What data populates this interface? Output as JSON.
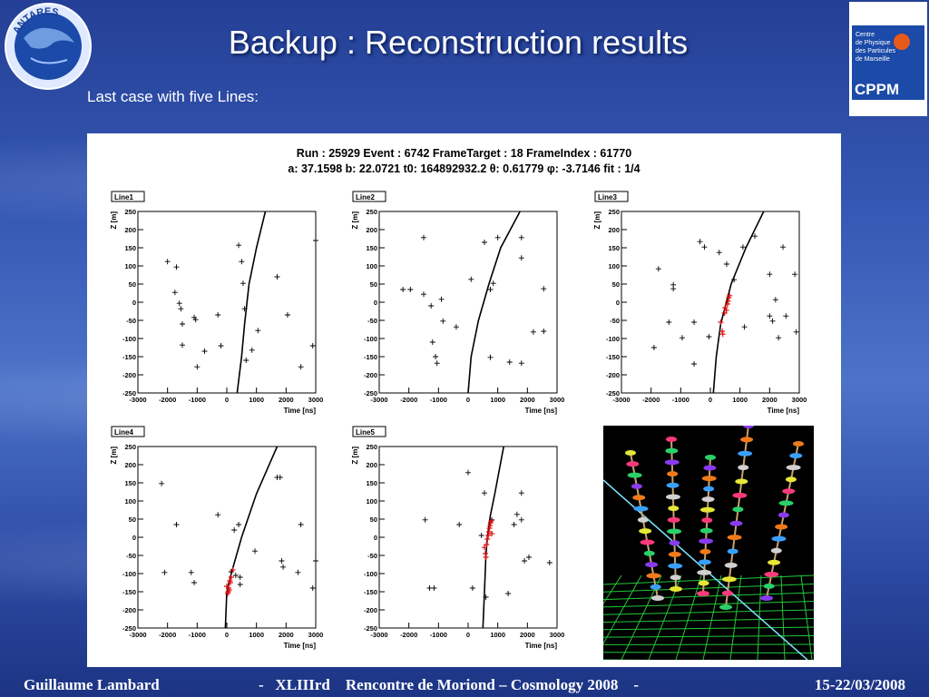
{
  "slide": {
    "title": "Backup : Reconstruction results",
    "subtitle": "Last case with five Lines:",
    "logo_left_text": "ANTARES",
    "logo_right": {
      "line1": "Centre",
      "line2": "de Physique",
      "line3": "des Particules",
      "line4": "de Marseille",
      "brand": "CPPM"
    }
  },
  "figure": {
    "title_line1": "Run : 25929 Event : 6742 FrameTarget : 18 FrameIndex : 61770",
    "title_line2": "a: 37.1598 b: 22.0721 t0: 164892932.2 θ: 0.61779 φ: -3.7146  fit : 1/4"
  },
  "footer": {
    "left": "Guillaume Lambard",
    "center": "-   XLIIIrd    Rencontre de Moriond – Cosmology 2008    -",
    "right": "15-22/03/2008"
  },
  "colors": {
    "hit": "#000000",
    "fit_hit": "#e01010",
    "curve": "#000000"
  },
  "chart_data": [
    {
      "type": "scatter",
      "title": "Line1",
      "xlabel": "Time [ns]",
      "ylabel": "Z [m]",
      "xlim": [
        -3000,
        3000
      ],
      "ylim": [
        -250,
        250
      ],
      "xticks": [
        -3000,
        -2000,
        -1000,
        0,
        1000,
        2000,
        3000
      ],
      "yticks": [
        -250,
        -200,
        -150,
        -100,
        -50,
        0,
        50,
        100,
        150,
        200,
        250
      ],
      "curve": [
        [
          350,
          -250
        ],
        [
          500,
          -150
        ],
        [
          600,
          -60
        ],
        [
          750,
          50
        ],
        [
          1000,
          150
        ],
        [
          1300,
          250
        ]
      ],
      "hits": [
        [
          -2000,
          112
        ],
        [
          -1700,
          97
        ],
        [
          -1750,
          27
        ],
        [
          -1600,
          -3
        ],
        [
          -1550,
          -18
        ],
        [
          -1500,
          -60
        ],
        [
          -1500,
          -118
        ],
        [
          -1050,
          -48
        ],
        [
          -1000,
          -178
        ],
        [
          -750,
          -135
        ],
        [
          -1100,
          -42
        ],
        [
          -300,
          -35
        ],
        [
          -200,
          -120
        ],
        [
          400,
          157
        ],
        [
          500,
          112
        ],
        [
          550,
          52
        ],
        [
          600,
          -18
        ],
        [
          650,
          -160
        ],
        [
          850,
          -132
        ],
        [
          1050,
          -78
        ],
        [
          1700,
          70
        ],
        [
          2050,
          -35
        ],
        [
          2500,
          -178
        ],
        [
          2900,
          -120
        ],
        [
          3000,
          170
        ]
      ],
      "fit_hits": []
    },
    {
      "type": "scatter",
      "title": "Line2",
      "xlabel": "Time [ns]",
      "ylabel": "Z [m]",
      "xlim": [
        -3000,
        3000
      ],
      "ylim": [
        -250,
        250
      ],
      "xticks": [
        -3000,
        -2000,
        -1000,
        0,
        1000,
        2000,
        3000
      ],
      "yticks": [
        -250,
        -200,
        -150,
        -100,
        -50,
        0,
        50,
        100,
        150,
        200,
        250
      ],
      "curve": [
        [
          0,
          -250
        ],
        [
          100,
          -150
        ],
        [
          350,
          -50
        ],
        [
          700,
          50
        ],
        [
          1100,
          150
        ],
        [
          1750,
          250
        ]
      ],
      "hits": [
        [
          -2200,
          35
        ],
        [
          -1950,
          35
        ],
        [
          -1500,
          178
        ],
        [
          -1500,
          22
        ],
        [
          -1250,
          -10
        ],
        [
          -1200,
          -110
        ],
        [
          -1100,
          -150
        ],
        [
          -1050,
          -168
        ],
        [
          -900,
          8
        ],
        [
          -850,
          -52
        ],
        [
          -400,
          -68
        ],
        [
          100,
          63
        ],
        [
          550,
          165
        ],
        [
          750,
          35
        ],
        [
          850,
          52
        ],
        [
          750,
          -152
        ],
        [
          1000,
          178
        ],
        [
          1400,
          -165
        ],
        [
          1800,
          178
        ],
        [
          1800,
          122
        ],
        [
          1800,
          -168
        ],
        [
          2200,
          -82
        ],
        [
          2550,
          37
        ],
        [
          2550,
          -80
        ]
      ],
      "fit_hits": []
    },
    {
      "type": "scatter",
      "title": "Line3",
      "xlabel": "Time [ns]",
      "ylabel": "Z [m]",
      "xlim": [
        -3000,
        3000
      ],
      "ylim": [
        -250,
        250
      ],
      "xticks": [
        -3000,
        -2000,
        -1000,
        0,
        1000,
        2000,
        3000
      ],
      "yticks": [
        -250,
        -200,
        -150,
        -100,
        -50,
        0,
        50,
        100,
        150,
        200,
        250
      ],
      "curve": [
        [
          100,
          -250
        ],
        [
          200,
          -150
        ],
        [
          350,
          -60
        ],
        [
          700,
          50
        ],
        [
          1200,
          150
        ],
        [
          1800,
          250
        ]
      ],
      "hits": [
        [
          -1750,
          92
        ],
        [
          -1900,
          -125
        ],
        [
          -1400,
          -55
        ],
        [
          -1250,
          48
        ],
        [
          -1250,
          37
        ],
        [
          -950,
          -98
        ],
        [
          -550,
          -55
        ],
        [
          -550,
          -170
        ],
        [
          -350,
          167
        ],
        [
          -200,
          152
        ],
        [
          -50,
          -95
        ],
        [
          300,
          137
        ],
        [
          550,
          105
        ],
        [
          800,
          62
        ],
        [
          1100,
          152
        ],
        [
          1150,
          -68
        ],
        [
          1500,
          182
        ],
        [
          2000,
          -38
        ],
        [
          2100,
          -52
        ],
        [
          2000,
          77
        ],
        [
          2200,
          7
        ],
        [
          2300,
          -98
        ],
        [
          2450,
          152
        ],
        [
          2550,
          -38
        ],
        [
          2850,
          77
        ],
        [
          2900,
          -82
        ]
      ],
      "fit_hits": [
        [
          350,
          -55
        ],
        [
          400,
          -80
        ],
        [
          420,
          -88
        ],
        [
          480,
          -30
        ],
        [
          500,
          -15
        ],
        [
          540,
          -22
        ],
        [
          580,
          -5
        ],
        [
          600,
          3
        ],
        [
          620,
          12
        ],
        [
          650,
          18
        ]
      ]
    },
    {
      "type": "scatter",
      "title": "Line4",
      "xlabel": "Time [ns]",
      "ylabel": "Z [m]",
      "xlim": [
        -3000,
        3000
      ],
      "ylim": [
        -250,
        250
      ],
      "xticks": [
        -3000,
        -2000,
        -1000,
        0,
        1000,
        2000,
        3000
      ],
      "yticks": [
        -250,
        -200,
        -150,
        -100,
        -50,
        0,
        50,
        100,
        150,
        200,
        250
      ],
      "curve": [
        [
          -50,
          -250
        ],
        [
          0,
          -150
        ],
        [
          150,
          -100
        ],
        [
          500,
          0
        ],
        [
          1000,
          120
        ],
        [
          1700,
          250
        ]
      ],
      "hits": [
        [
          -2200,
          148
        ],
        [
          -2100,
          -97
        ],
        [
          -1700,
          35
        ],
        [
          -1200,
          -97
        ],
        [
          -1100,
          -125
        ],
        [
          -300,
          62
        ],
        [
          150,
          -95
        ],
        [
          250,
          20
        ],
        [
          300,
          -105
        ],
        [
          400,
          35
        ],
        [
          450,
          -110
        ],
        [
          450,
          -130
        ],
        [
          950,
          -38
        ],
        [
          1700,
          165
        ],
        [
          1800,
          165
        ],
        [
          1850,
          -65
        ],
        [
          1900,
          -82
        ],
        [
          2400,
          -97
        ],
        [
          2500,
          35
        ],
        [
          3000,
          -65
        ],
        [
          2900,
          -140
        ]
      ],
      "fit_hits": [
        [
          0,
          -135
        ],
        [
          30,
          -155
        ],
        [
          50,
          -150
        ],
        [
          60,
          -140
        ],
        [
          80,
          -145
        ],
        [
          100,
          -120
        ],
        [
          120,
          -125
        ],
        [
          150,
          -110
        ],
        [
          200,
          -90
        ]
      ]
    },
    {
      "type": "scatter",
      "title": "Line5",
      "xlabel": "Time [ns]",
      "ylabel": "Z [m]",
      "xlim": [
        -3000,
        3000
      ],
      "ylim": [
        -250,
        250
      ],
      "xticks": [
        -3000,
        -2000,
        -1000,
        0,
        1000,
        2000,
        3000
      ],
      "yticks": [
        -250,
        -200,
        -150,
        -100,
        -50,
        0,
        50,
        100,
        150,
        200,
        250
      ],
      "curve": [
        [
          500,
          -250
        ],
        [
          550,
          -150
        ],
        [
          600,
          -50
        ],
        [
          650,
          0
        ],
        [
          750,
          60
        ],
        [
          900,
          120
        ],
        [
          1200,
          250
        ]
      ],
      "hits": [
        [
          -1450,
          48
        ],
        [
          -1300,
          -140
        ],
        [
          -1150,
          -140
        ],
        [
          -300,
          35
        ],
        [
          0,
          178
        ],
        [
          150,
          -140
        ],
        [
          450,
          5
        ],
        [
          550,
          122
        ],
        [
          600,
          -165
        ],
        [
          800,
          48
        ],
        [
          1350,
          -155
        ],
        [
          1550,
          35
        ],
        [
          1650,
          63
        ],
        [
          1800,
          48
        ],
        [
          1800,
          122
        ],
        [
          1900,
          -65
        ],
        [
          2050,
          -55
        ],
        [
          2750,
          -70
        ]
      ],
      "fit_hits": [
        [
          550,
          -28
        ],
        [
          580,
          -45
        ],
        [
          600,
          -55
        ],
        [
          620,
          -20
        ],
        [
          650,
          -5
        ],
        [
          680,
          5
        ],
        [
          700,
          15
        ],
        [
          720,
          25
        ],
        [
          740,
          32
        ],
        [
          760,
          40
        ],
        [
          780,
          45
        ],
        [
          800,
          10
        ]
      ]
    }
  ]
}
